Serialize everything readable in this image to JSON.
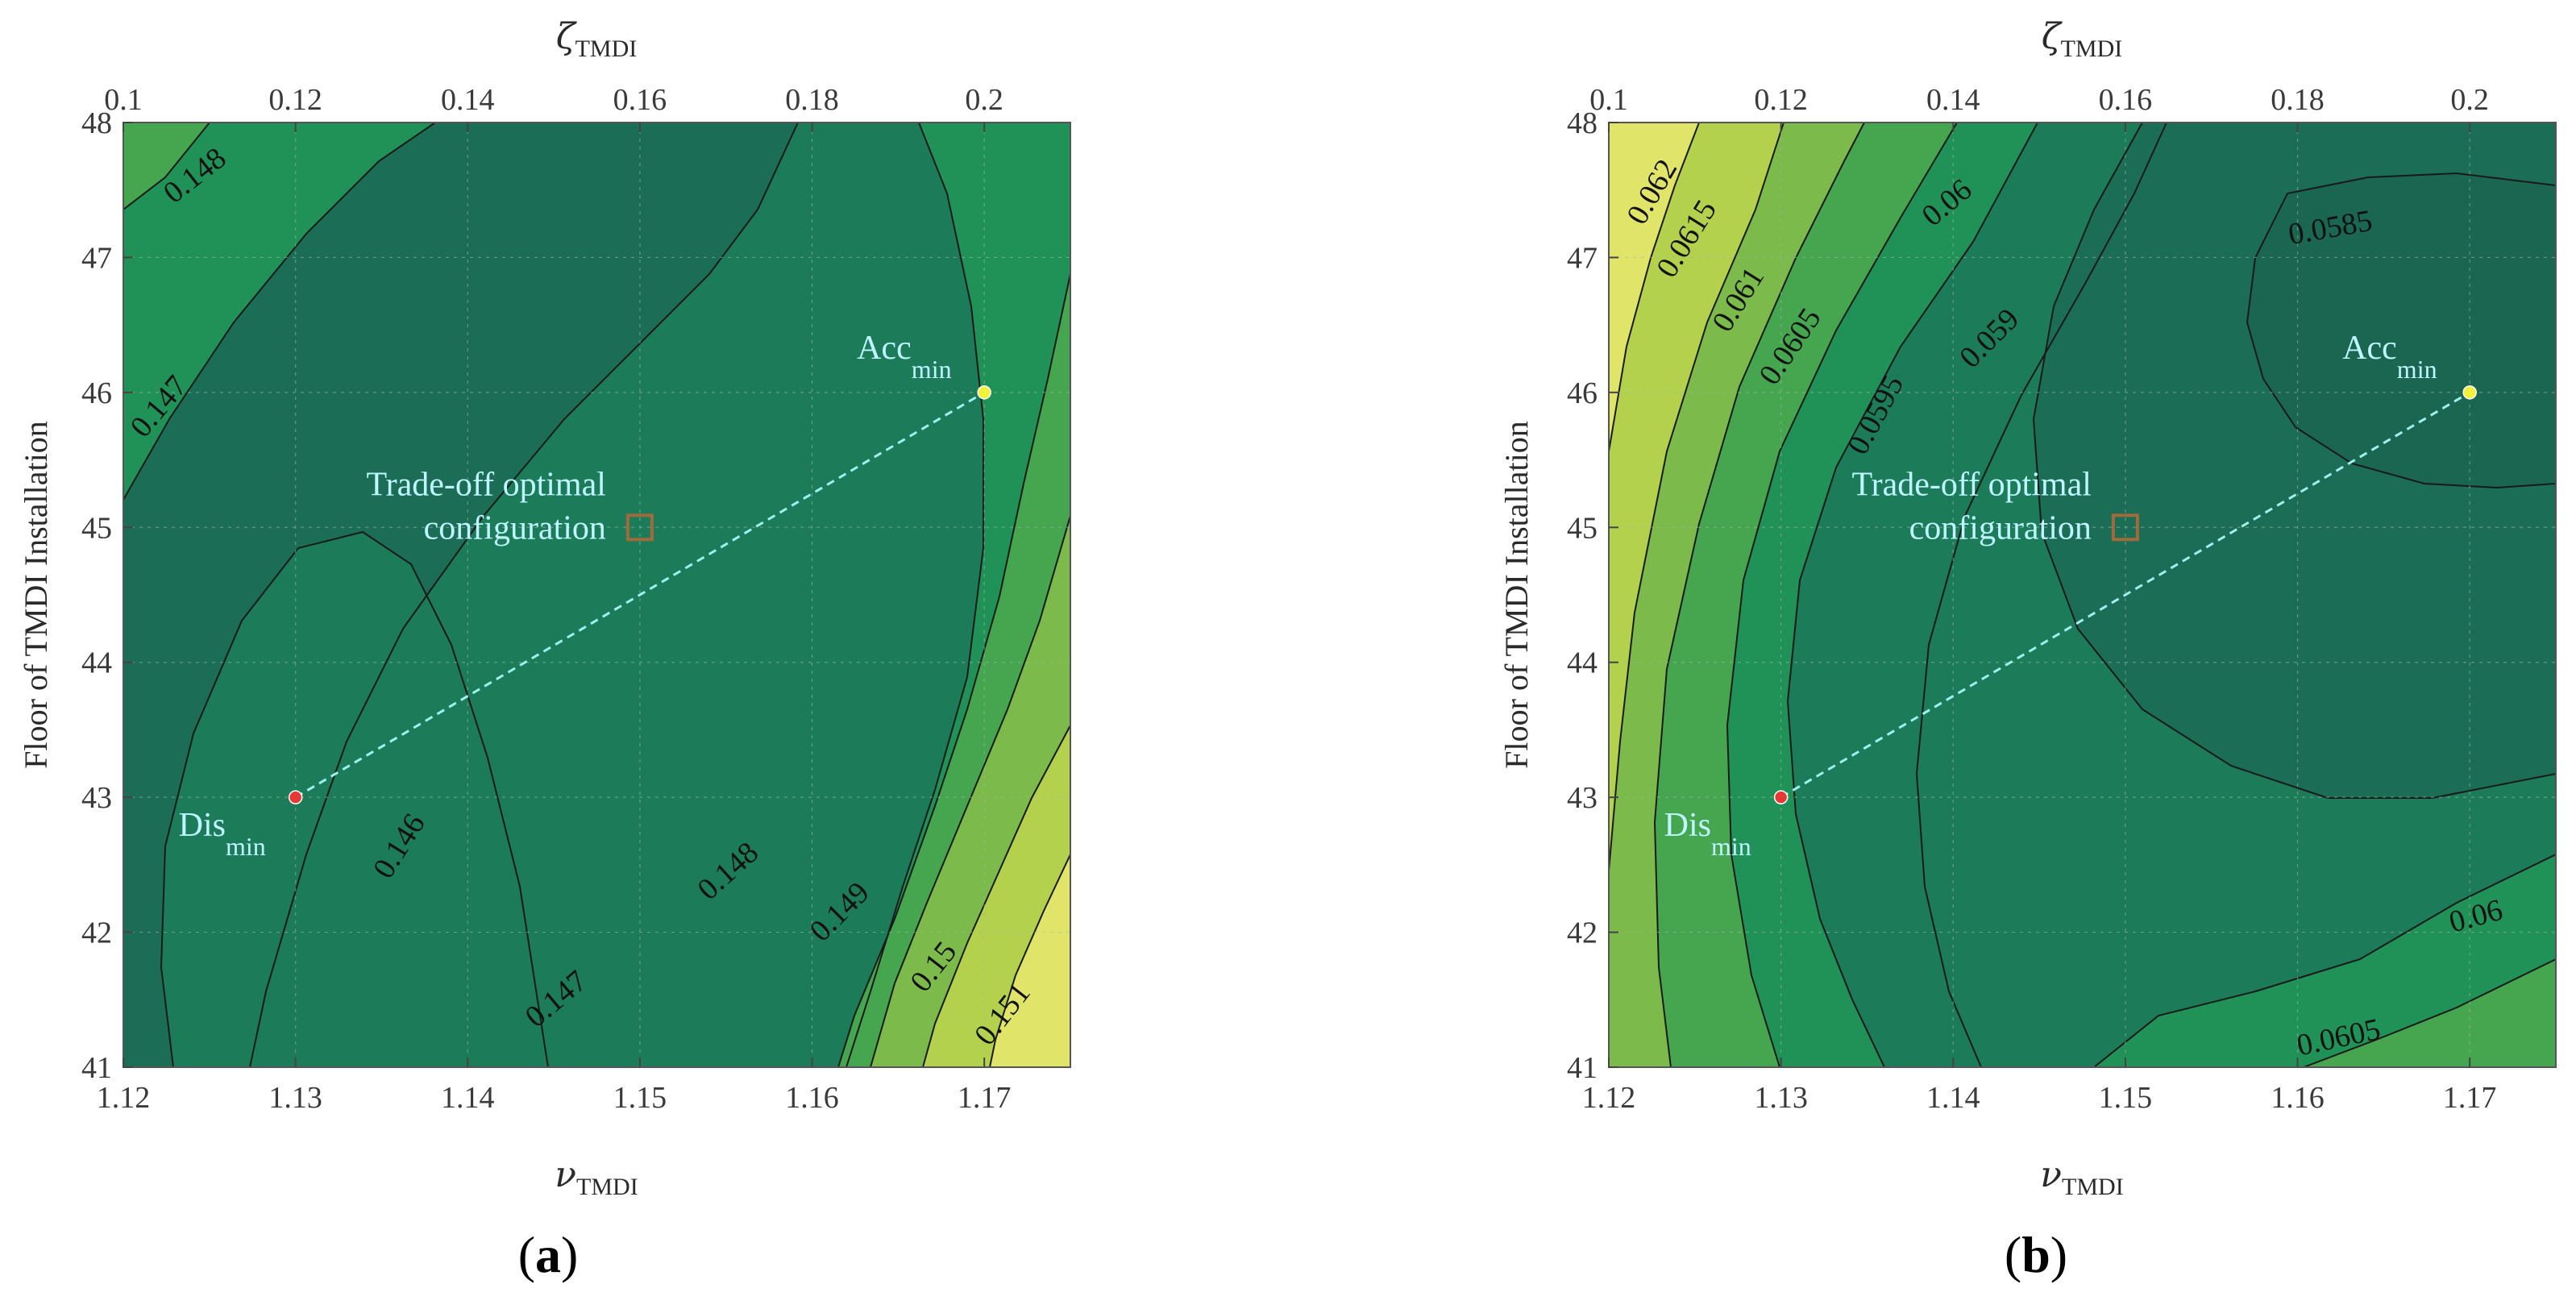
{
  "colors": {
    "level_fills": [
      "#1b6e55",
      "#1c7b58",
      "#219257",
      "#46a64f",
      "#7bba4b",
      "#b3d14d",
      "#e0e56a"
    ],
    "contour_line": "#1a1a1a",
    "grid": "#9fb8a8",
    "trend_line": "#9ff0f0",
    "marker_dis": "#e53935",
    "marker_acc": "#f2f23a",
    "marker_tradeoff": "#a06a3a",
    "annotation_text": "#bff6ff"
  },
  "chart_data": [
    {
      "id": "a",
      "type": "contour",
      "panel_label": "a",
      "xlabel_symbol": "ν",
      "xlabel_sub": "TMDI",
      "top_xlabel_symbol": "ζ",
      "top_xlabel_sub": "TMDI",
      "ylabel": "Floor of TMDI Installation",
      "xlim": [
        1.12,
        1.175
      ],
      "ylim": [
        41,
        48
      ],
      "top_xlim": [
        0.1,
        0.21
      ],
      "x_ticks": [
        "1.12",
        "1.13",
        "1.14",
        "1.15",
        "1.16",
        "1.17"
      ],
      "top_x_ticks": [
        "0.1",
        "0.12",
        "0.14",
        "0.16",
        "0.18",
        "0.2"
      ],
      "y_ticks": [
        "41",
        "42",
        "43",
        "44",
        "45",
        "46",
        "47",
        "48"
      ],
      "contour_labels": [
        {
          "text": "0.148",
          "x": 1.1245,
          "y": 47.55,
          "angle": -38
        },
        {
          "text": "0.147",
          "x": 1.1225,
          "y": 45.85,
          "angle": -50
        },
        {
          "text": "0.146",
          "x": 1.1365,
          "y": 42.6,
          "angle": -58
        },
        {
          "text": "0.147",
          "x": 1.1455,
          "y": 41.45,
          "angle": -40
        },
        {
          "text": "0.148",
          "x": 1.1555,
          "y": 42.4,
          "angle": -42
        },
        {
          "text": "0.149",
          "x": 1.162,
          "y": 42.1,
          "angle": -45
        },
        {
          "text": "0.15",
          "x": 1.1675,
          "y": 41.7,
          "angle": -52
        },
        {
          "text": "0.151",
          "x": 1.1715,
          "y": 41.35,
          "angle": -52
        }
      ],
      "points": {
        "dis_min": {
          "label": "Dis",
          "sub": "min",
          "x": 1.13,
          "y": 43
        },
        "acc_min": {
          "label": "Acc",
          "sub": "min",
          "x": 1.17,
          "y": 46
        },
        "tradeoff": {
          "label_line1": "Trade-off optimal",
          "label_line2": "configuration",
          "x": 1.15,
          "y": 45
        }
      }
    },
    {
      "id": "b",
      "type": "contour",
      "panel_label": "b",
      "xlabel_symbol": "ν",
      "xlabel_sub": "TMDI",
      "top_xlabel_symbol": "ζ",
      "top_xlabel_sub": "TMDI",
      "ylabel": "Floor of TMDI Installation",
      "xlim": [
        1.12,
        1.175
      ],
      "ylim": [
        41,
        48
      ],
      "top_xlim": [
        0.1,
        0.21
      ],
      "x_ticks": [
        "1.12",
        "1.13",
        "1.14",
        "1.15",
        "1.16",
        "1.17"
      ],
      "top_x_ticks": [
        "0.1",
        "0.12",
        "0.14",
        "0.16",
        "0.18",
        "0.2"
      ],
      "y_ticks": [
        "41",
        "42",
        "43",
        "44",
        "45",
        "46",
        "47",
        "48"
      ],
      "contour_labels": [
        {
          "text": "0.062",
          "x": 1.123,
          "y": 47.45,
          "angle": -60
        },
        {
          "text": "0.0615",
          "x": 1.125,
          "y": 47.1,
          "angle": -58
        },
        {
          "text": "0.061",
          "x": 1.128,
          "y": 46.65,
          "angle": -58
        },
        {
          "text": "0.0605",
          "x": 1.131,
          "y": 46.3,
          "angle": -56
        },
        {
          "text": "0.06",
          "x": 1.14,
          "y": 47.35,
          "angle": -40
        },
        {
          "text": "0.059",
          "x": 1.1425,
          "y": 46.35,
          "angle": -45
        },
        {
          "text": "0.0595",
          "x": 1.136,
          "y": 45.8,
          "angle": -62
        },
        {
          "text": "0.0585",
          "x": 1.162,
          "y": 47.15,
          "angle": -10
        },
        {
          "text": "0.06",
          "x": 1.1705,
          "y": 42.05,
          "angle": -15
        },
        {
          "text": "0.0605",
          "x": 1.1625,
          "y": 41.15,
          "angle": -12
        }
      ],
      "points": {
        "dis_min": {
          "label": "Dis",
          "sub": "min",
          "x": 1.13,
          "y": 43
        },
        "acc_min": {
          "label": "Acc",
          "sub": "min",
          "x": 1.17,
          "y": 46
        },
        "tradeoff": {
          "label_line1": "Trade-off optimal",
          "label_line2": "configuration",
          "x": 1.15,
          "y": 45
        }
      }
    }
  ]
}
